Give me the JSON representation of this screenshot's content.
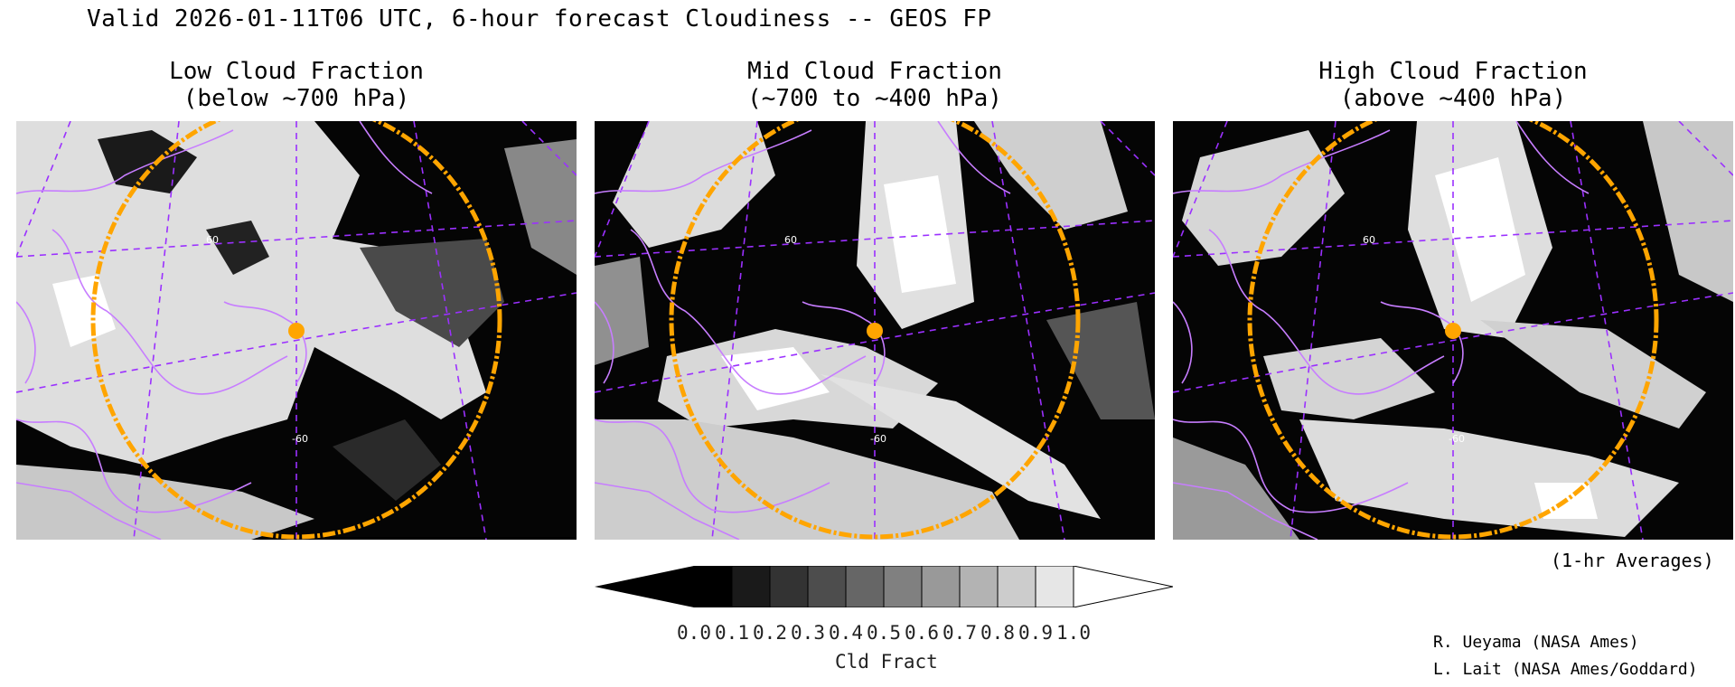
{
  "header": {
    "title": "Valid 2026-01-11T06 UTC, 6-hour forecast Cloudiness -- GEOS FP"
  },
  "panels": [
    {
      "title_line1": "Low Cloud Fraction",
      "title_line2": "(below ~700 hPa)",
      "label_lat": "60",
      "label_lon": "-60"
    },
    {
      "title_line1": "Mid Cloud Fraction",
      "title_line2": "(~700 to ~400 hPa)",
      "label_lat": "60",
      "label_lon": "-60"
    },
    {
      "title_line1": "High Cloud Fraction",
      "title_line2": "(above ~400 hPa)",
      "label_lat": "60",
      "label_lon": "-60"
    }
  ],
  "colorbar": {
    "unit_label": "Cld Fract",
    "ticks": [
      "0.0",
      "0.1",
      "0.2",
      "0.3",
      "0.4",
      "0.5",
      "0.6",
      "0.7",
      "0.8",
      "0.9",
      "1.0"
    ],
    "colors": [
      "#000000",
      "#1a1a1a",
      "#333333",
      "#4d4d4d",
      "#666666",
      "#808080",
      "#999999",
      "#b3b3b3",
      "#cccccc",
      "#e6e6e6"
    ]
  },
  "notes": {
    "averaging": "(1-hr Averages)",
    "credit_1": "R. Ueyama (NASA Ames)",
    "credit_2": "L. Lait (NASA Ames/Goddard)"
  },
  "colors": {
    "coastline": "#c77dff",
    "graticule": "#9b30ff",
    "range_ring": "#ffa500",
    "marker": "#ffa500",
    "cloud_high": "#dcdcdc"
  }
}
